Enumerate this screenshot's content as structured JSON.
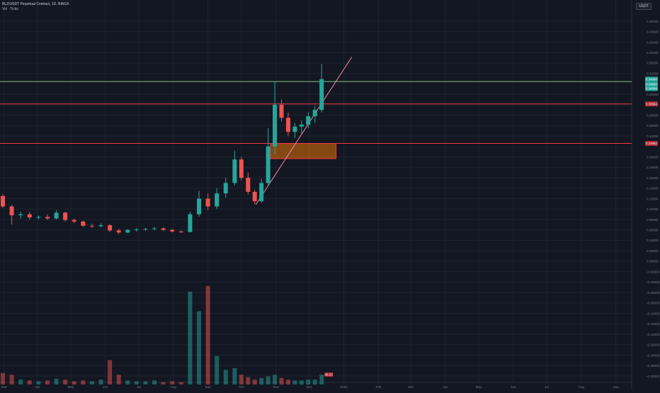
{
  "header": {
    "title": "BLZ/USDT Perpetual Contract, 1D, BINGX",
    "subtitle": "Vol · Ticks",
    "currency": "USDT"
  },
  "chart_data": {
    "type": "candlestick",
    "grid": true,
    "x_labels": [
      "Mar",
      "Apr",
      "May",
      "Jun",
      "Jul",
      "Aug",
      "Sep",
      "Oct",
      "Nov",
      "Dec",
      "2024",
      "Feb",
      "Mar",
      "Apr",
      "May",
      "Jun",
      "Jul",
      "Aug",
      "Sep"
    ],
    "y_ticks": [
      "0.46000",
      "0.44000",
      "0.42000",
      "0.40000",
      "0.38000",
      "0.36000",
      "0.32000",
      "0.30000",
      "0.28000",
      "0.26000",
      "0.24000",
      "0.20000",
      "0.18000",
      "0.16000",
      "0.14000",
      "0.12000",
      "0.10000",
      "0.08000",
      "0.06000",
      "0.04000",
      "0.02000",
      "0.00000",
      "-0.02000",
      "-0.04000",
      "-0.06000",
      "-0.08000",
      "-0.10000",
      "-0.12000",
      "-0.14000",
      "-0.16000",
      "-0.18000",
      "-0.20000",
      "-0.22000"
    ],
    "price_tags": [
      {
        "label": "0.34894",
        "value": 0.349,
        "color": "#26a69a"
      },
      {
        "label": "0.34894",
        "value": 0.3395,
        "color": "#26a69a"
      },
      {
        "label": "0.34894",
        "value": 0.331,
        "color": "#26a69a"
      },
      {
        "label": "0.30554",
        "value": 0.3015,
        "color": "#b22833"
      },
      {
        "label": "0.22952",
        "value": 0.2258,
        "color": "#b22833"
      }
    ],
    "volume_tag": "48.23",
    "horizontal_lines": [
      {
        "value": 0.3445,
        "color": "#81c784"
      },
      {
        "value": 0.3015,
        "color": "#f23645"
      },
      {
        "value": 0.2258,
        "color": "#f23645"
      }
    ],
    "zone": {
      "x_start": "2023-10-27",
      "x_end": "2023-12-25",
      "y_low": 0.1966,
      "y_high": 0.2258,
      "color": "#f57c00"
    },
    "trendline": {
      "x1": "2023-10-14",
      "y1": 0.1085,
      "x2": "2024-01-08",
      "y2": 0.3913,
      "color": "#f28ca0"
    },
    "candles": [
      {
        "date": "2023-03-01",
        "o": 0.125,
        "h": 0.128,
        "l": 0.102,
        "c": 0.105
      },
      {
        "date": "2023-03-09",
        "o": 0.105,
        "h": 0.108,
        "l": 0.07,
        "c": 0.088
      },
      {
        "date": "2023-03-17",
        "o": 0.088,
        "h": 0.095,
        "l": 0.082,
        "c": 0.09
      },
      {
        "date": "2023-03-25",
        "o": 0.09,
        "h": 0.094,
        "l": 0.08,
        "c": 0.084
      },
      {
        "date": "2023-04-02",
        "o": 0.084,
        "h": 0.088,
        "l": 0.08,
        "c": 0.085
      },
      {
        "date": "2023-04-10",
        "o": 0.085,
        "h": 0.09,
        "l": 0.079,
        "c": 0.082
      },
      {
        "date": "2023-04-18",
        "o": 0.082,
        "h": 0.098,
        "l": 0.08,
        "c": 0.093
      },
      {
        "date": "2023-04-26",
        "o": 0.093,
        "h": 0.095,
        "l": 0.076,
        "c": 0.079
      },
      {
        "date": "2023-05-04",
        "o": 0.079,
        "h": 0.082,
        "l": 0.073,
        "c": 0.076
      },
      {
        "date": "2023-05-12",
        "o": 0.076,
        "h": 0.078,
        "l": 0.066,
        "c": 0.068
      },
      {
        "date": "2023-05-20",
        "o": 0.068,
        "h": 0.072,
        "l": 0.064,
        "c": 0.067
      },
      {
        "date": "2023-05-28",
        "o": 0.067,
        "h": 0.073,
        "l": 0.065,
        "c": 0.069
      },
      {
        "date": "2023-06-05",
        "o": 0.069,
        "h": 0.071,
        "l": 0.056,
        "c": 0.059
      },
      {
        "date": "2023-06-13",
        "o": 0.059,
        "h": 0.062,
        "l": 0.052,
        "c": 0.055
      },
      {
        "date": "2023-06-21",
        "o": 0.055,
        "h": 0.062,
        "l": 0.054,
        "c": 0.06
      },
      {
        "date": "2023-06-29",
        "o": 0.06,
        "h": 0.064,
        "l": 0.057,
        "c": 0.061
      },
      {
        "date": "2023-07-07",
        "o": 0.061,
        "h": 0.064,
        "l": 0.058,
        "c": 0.062
      },
      {
        "date": "2023-07-15",
        "o": 0.062,
        "h": 0.066,
        "l": 0.059,
        "c": 0.063
      },
      {
        "date": "2023-07-23",
        "o": 0.063,
        "h": 0.065,
        "l": 0.058,
        "c": 0.06
      },
      {
        "date": "2023-07-31",
        "o": 0.06,
        "h": 0.062,
        "l": 0.055,
        "c": 0.057
      },
      {
        "date": "2023-08-08",
        "o": 0.057,
        "h": 0.06,
        "l": 0.054,
        "c": 0.056
      },
      {
        "date": "2023-08-16",
        "o": 0.056,
        "h": 0.095,
        "l": 0.055,
        "c": 0.09
      },
      {
        "date": "2023-08-24",
        "o": 0.09,
        "h": 0.135,
        "l": 0.085,
        "c": 0.12
      },
      {
        "date": "2023-09-01",
        "o": 0.12,
        "h": 0.13,
        "l": 0.098,
        "c": 0.105
      },
      {
        "date": "2023-09-09",
        "o": 0.105,
        "h": 0.14,
        "l": 0.1,
        "c": 0.13
      },
      {
        "date": "2023-09-17",
        "o": 0.13,
        "h": 0.16,
        "l": 0.122,
        "c": 0.15
      },
      {
        "date": "2023-09-25",
        "o": 0.15,
        "h": 0.212,
        "l": 0.145,
        "c": 0.195
      },
      {
        "date": "2023-10-01",
        "o": 0.195,
        "h": 0.2,
        "l": 0.155,
        "c": 0.16
      },
      {
        "date": "2023-10-07",
        "o": 0.16,
        "h": 0.17,
        "l": 0.128,
        "c": 0.133
      },
      {
        "date": "2023-10-13",
        "o": 0.133,
        "h": 0.137,
        "l": 0.109,
        "c": 0.115
      },
      {
        "date": "2023-10-19",
        "o": 0.115,
        "h": 0.158,
        "l": 0.112,
        "c": 0.15
      },
      {
        "date": "2023-10-25",
        "o": 0.15,
        "h": 0.255,
        "l": 0.145,
        "c": 0.22
      },
      {
        "date": "2023-10-31",
        "o": 0.22,
        "h": 0.345,
        "l": 0.205,
        "c": 0.3
      },
      {
        "date": "2023-11-06",
        "o": 0.3,
        "h": 0.31,
        "l": 0.268,
        "c": 0.275
      },
      {
        "date": "2023-11-12",
        "o": 0.275,
        "h": 0.285,
        "l": 0.24,
        "c": 0.248
      },
      {
        "date": "2023-11-18",
        "o": 0.248,
        "h": 0.265,
        "l": 0.236,
        "c": 0.258
      },
      {
        "date": "2023-11-24",
        "o": 0.258,
        "h": 0.27,
        "l": 0.245,
        "c": 0.262
      },
      {
        "date": "2023-11-30",
        "o": 0.262,
        "h": 0.285,
        "l": 0.255,
        "c": 0.278
      },
      {
        "date": "2023-12-06",
        "o": 0.278,
        "h": 0.298,
        "l": 0.265,
        "c": 0.29
      },
      {
        "date": "2023-12-12",
        "o": 0.29,
        "h": 0.378,
        "l": 0.285,
        "c": 0.349
      }
    ],
    "volume": [
      {
        "date": "2023-03-01",
        "v": 0.014,
        "up": false
      },
      {
        "date": "2023-03-09",
        "v": 0.012,
        "up": false
      },
      {
        "date": "2023-03-17",
        "v": 0.006,
        "up": true
      },
      {
        "date": "2023-03-25",
        "v": 0.005,
        "up": false
      },
      {
        "date": "2023-04-02",
        "v": 0.004,
        "up": true
      },
      {
        "date": "2023-04-10",
        "v": 0.005,
        "up": false
      },
      {
        "date": "2023-04-18",
        "v": 0.007,
        "up": true
      },
      {
        "date": "2023-04-26",
        "v": 0.006,
        "up": false
      },
      {
        "date": "2023-05-04",
        "v": 0.004,
        "up": false
      },
      {
        "date": "2023-05-12",
        "v": 0.005,
        "up": false
      },
      {
        "date": "2023-05-20",
        "v": 0.004,
        "up": true
      },
      {
        "date": "2023-05-28",
        "v": 0.006,
        "up": true
      },
      {
        "date": "2023-06-05",
        "v": 0.03,
        "up": false
      },
      {
        "date": "2023-06-13",
        "v": 0.012,
        "up": false
      },
      {
        "date": "2023-06-21",
        "v": 0.005,
        "up": true
      },
      {
        "date": "2023-06-29",
        "v": 0.004,
        "up": true
      },
      {
        "date": "2023-07-07",
        "v": 0.004,
        "up": true
      },
      {
        "date": "2023-07-15",
        "v": 0.005,
        "up": true
      },
      {
        "date": "2023-07-23",
        "v": 0.003,
        "up": false
      },
      {
        "date": "2023-07-31",
        "v": 0.004,
        "up": false
      },
      {
        "date": "2023-08-08",
        "v": 0.003,
        "up": false
      },
      {
        "date": "2023-08-16",
        "v": 0.114,
        "up": true
      },
      {
        "date": "2023-08-24",
        "v": 0.09,
        "up": true
      },
      {
        "date": "2023-09-01",
        "v": 0.121,
        "up": false
      },
      {
        "date": "2023-09-09",
        "v": 0.035,
        "up": true
      },
      {
        "date": "2023-09-17",
        "v": 0.018,
        "up": true
      },
      {
        "date": "2023-09-25",
        "v": 0.02,
        "up": true
      },
      {
        "date": "2023-10-01",
        "v": 0.012,
        "up": false
      },
      {
        "date": "2023-10-07",
        "v": 0.009,
        "up": false
      },
      {
        "date": "2023-10-13",
        "v": 0.006,
        "up": false
      },
      {
        "date": "2023-10-19",
        "v": 0.008,
        "up": true
      },
      {
        "date": "2023-10-25",
        "v": 0.01,
        "up": true
      },
      {
        "date": "2023-10-31",
        "v": 0.012,
        "up": true
      },
      {
        "date": "2023-11-06",
        "v": 0.008,
        "up": false
      },
      {
        "date": "2023-11-12",
        "v": 0.006,
        "up": false
      },
      {
        "date": "2023-11-18",
        "v": 0.005,
        "up": true
      },
      {
        "date": "2023-11-24",
        "v": 0.005,
        "up": true
      },
      {
        "date": "2023-11-30",
        "v": 0.006,
        "up": true
      },
      {
        "date": "2023-12-06",
        "v": 0.006,
        "up": true
      },
      {
        "date": "2023-12-12",
        "v": 0.012,
        "up": true
      }
    ]
  }
}
